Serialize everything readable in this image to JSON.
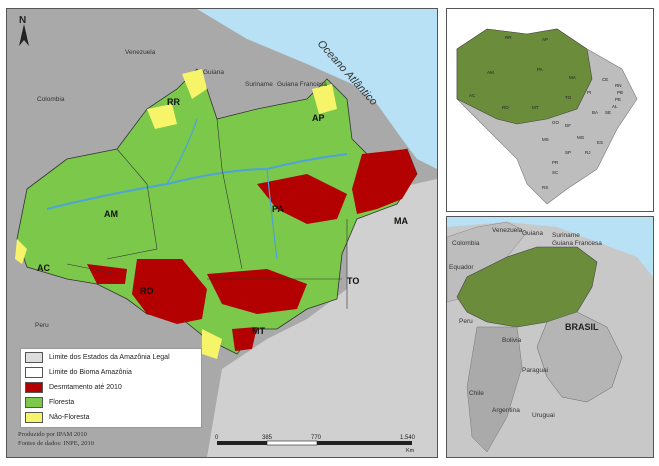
{
  "main_map": {
    "ocean_label": "Oceano Atlântico",
    "countries": [
      "Venezuela",
      "Colombia",
      "Guiana",
      "Suriname",
      "Guiana Francesa",
      "Peru"
    ],
    "states": [
      "RR",
      "AP",
      "AM",
      "PA",
      "MA",
      "AC",
      "RO",
      "TO",
      "MT"
    ],
    "north_label": "N"
  },
  "legend": {
    "items": [
      {
        "label": "Limite dos Estados da Amazônia Legal",
        "color": "#dddddd"
      },
      {
        "label": "Limite do Bioma Amazônia",
        "color": "#ffffff"
      },
      {
        "label": "Desmtamento até 2010",
        "color": "#b30000"
      },
      {
        "label": "Floresta",
        "color": "#7cc84a"
      },
      {
        "label": "Não-Floresta",
        "color": "#f6f56a"
      }
    ]
  },
  "credits": {
    "line1": "Produzido por IPAM 2010",
    "line2": "Fontes de dados: INPE, 2010"
  },
  "scale": {
    "ticks": [
      "0",
      "385",
      "770",
      "1.540"
    ],
    "unit": "Km"
  },
  "inset_top": {
    "labels": [
      "RR",
      "AP",
      "AM",
      "PA",
      "MA",
      "CE",
      "RN",
      "PB",
      "PE",
      "AL",
      "SE",
      "AC",
      "RO",
      "TO",
      "PI",
      "BA",
      "MT",
      "GO",
      "DF",
      "MG",
      "ES",
      "MS",
      "SP",
      "RJ",
      "PR",
      "SC",
      "RS"
    ]
  },
  "inset_bottom": {
    "labels": [
      "Venezuela",
      "Guiana",
      "Suriname",
      "Guiana Francesa",
      "Colombia",
      "Equador",
      "Peru",
      "Bolivia",
      "BRASIL",
      "Paraguai",
      "Chile",
      "Argentina",
      "Uruguai"
    ]
  },
  "colors": {
    "ocean": "#b8e1f5",
    "land_other": "#a9a9a9",
    "forest": "#7cc84a",
    "deforest": "#b30000",
    "nonforest": "#f6f56a",
    "amazon_inset": "#6b8c3a"
  }
}
